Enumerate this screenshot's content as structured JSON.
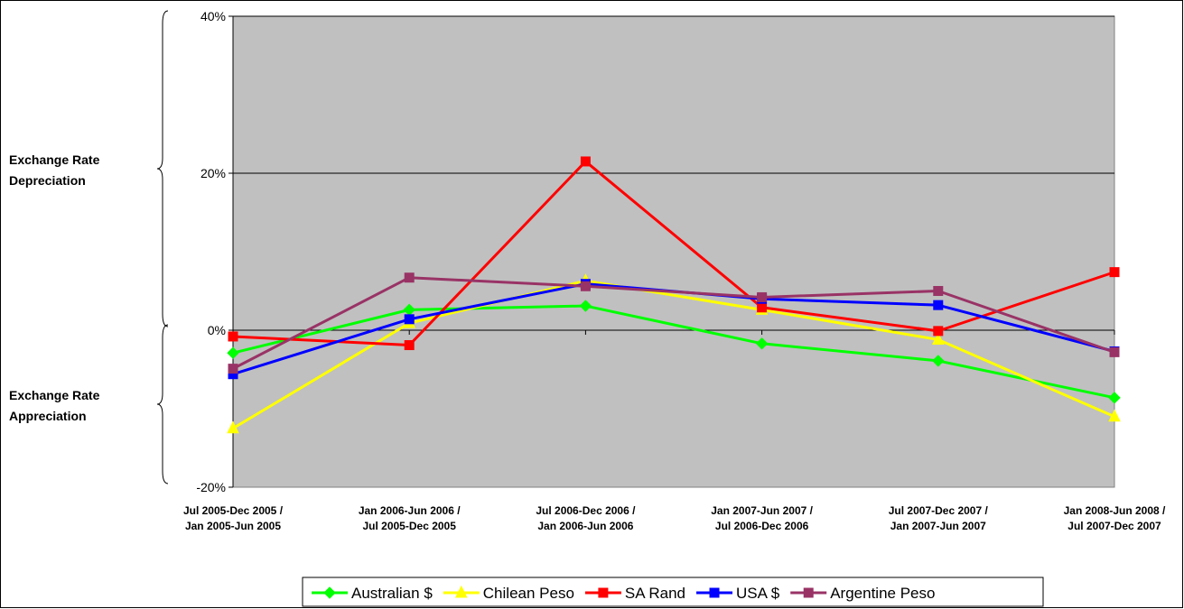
{
  "chart_data": {
    "type": "line",
    "title": "",
    "xlabel": "",
    "ylabel": "",
    "categories": [
      [
        "Jul 2005-Dec 2005 /",
        "Jan 2005-Jun 2005"
      ],
      [
        "Jan 2006-Jun 2006 /",
        "Jul 2005-Dec 2005"
      ],
      [
        "Jul 2006-Dec 2006 /",
        "Jan 2006-Jun 2006"
      ],
      [
        "Jan 2007-Jun 2007 /",
        "Jul 2006-Dec 2006"
      ],
      [
        "Jul 2007-Dec 2007 /",
        "Jan 2007-Jun 2007"
      ],
      [
        "Jan 2008-Jun 2008 /",
        "Jul 2007-Dec 2007"
      ]
    ],
    "ylim": [
      -20,
      40
    ],
    "yticks": [
      -20,
      0,
      20,
      40
    ],
    "ytick_labels": [
      "-20%",
      "0%",
      "20%",
      "40%"
    ],
    "grid": true,
    "legend_position": "bottom",
    "plot_background": "#C0C0C0",
    "series": [
      {
        "name": "Australian $",
        "color": "#00FF00",
        "marker": "diamond",
        "values": [
          -2.9,
          2.6,
          3.1,
          -1.7,
          -3.9,
          -8.6
        ]
      },
      {
        "name": "Chilean Peso",
        "color": "#FFFF00",
        "marker": "triangle",
        "values": [
          -12.5,
          0.9,
          6.3,
          2.6,
          -1.2,
          -11.0
        ]
      },
      {
        "name": "SA Rand",
        "color": "#FF0000",
        "marker": "square",
        "values": [
          -0.8,
          -1.9,
          21.5,
          2.9,
          -0.1,
          7.4
        ]
      },
      {
        "name": "USA $",
        "color": "#0000FF",
        "marker": "square",
        "values": [
          -5.6,
          1.4,
          5.9,
          4.0,
          3.2,
          -2.7
        ]
      },
      {
        "name": "Argentine Peso",
        "color": "#993366",
        "marker": "square",
        "values": [
          -4.9,
          6.7,
          5.6,
          4.2,
          5.0,
          -2.8
        ]
      }
    ],
    "annotations": [
      {
        "lines": [
          "Exchange Rate",
          "Depreciation"
        ],
        "range": [
          0,
          40
        ]
      },
      {
        "lines": [
          "Exchange Rate",
          "Appreciation"
        ],
        "range": [
          -20,
          0
        ]
      }
    ]
  }
}
